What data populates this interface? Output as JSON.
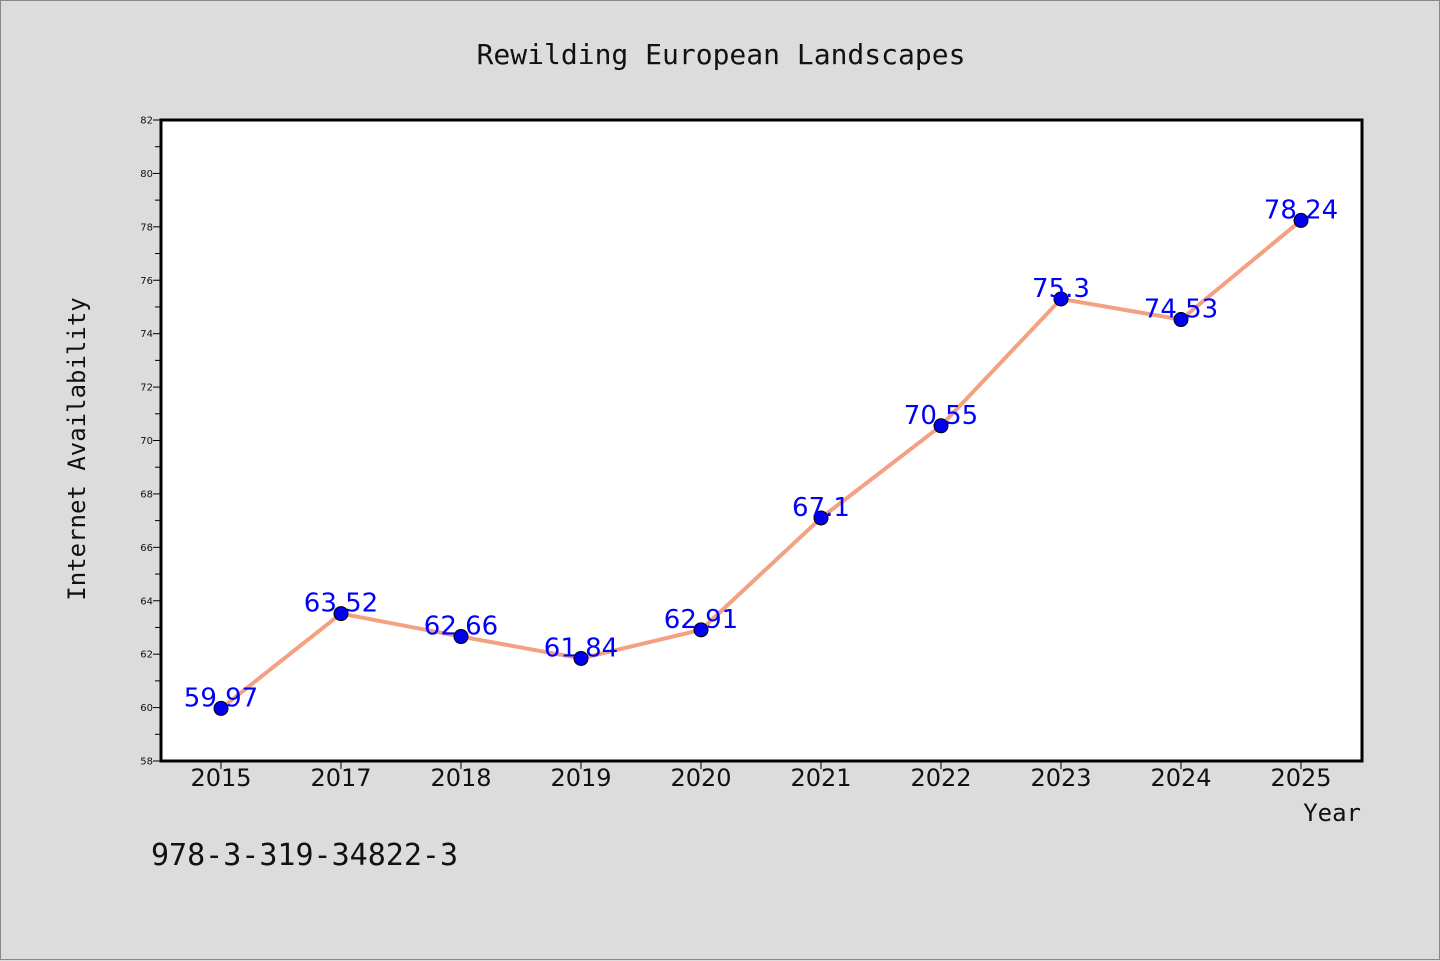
{
  "chart_data": {
    "type": "line",
    "title": "Rewilding European Landscapes",
    "xlabel": "Year",
    "ylabel": "Internet Availability",
    "categories": [
      "2015",
      "2017",
      "2018",
      "2019",
      "2020",
      "2021",
      "2022",
      "2023",
      "2024",
      "2025"
    ],
    "series": [
      {
        "values": [
          59.97,
          63.52,
          62.66,
          61.84,
          62.91,
          67.1,
          70.55,
          75.3,
          74.53,
          78.24
        ],
        "labels": [
          "59.97",
          "63.52",
          "62.66",
          "61.84",
          "62.91",
          "67.1",
          "70.55",
          "75.3",
          "74.53",
          "78.24"
        ],
        "line_color": "#f4a082",
        "marker_color": "#0000ee"
      }
    ],
    "ylim": [
      58,
      82
    ],
    "yticks": [
      "58",
      "60",
      "62",
      "64",
      "66",
      "68",
      "70",
      "72",
      "74",
      "76",
      "78",
      "80",
      "82"
    ],
    "grid": false,
    "legend": "none",
    "label_color": "#0000ff"
  },
  "footer": {
    "isbn": "978-3-319-34822-3"
  }
}
